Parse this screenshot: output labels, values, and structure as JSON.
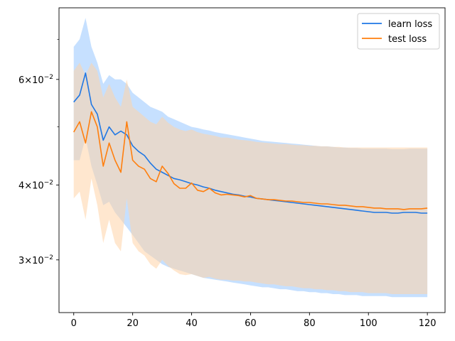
{
  "chart_data": {
    "type": "line",
    "title": "",
    "xlabel": "",
    "ylabel": "",
    "xlim": [
      -5,
      126
    ],
    "ylim": [
      0.0245,
      0.079
    ],
    "yscale": "log",
    "grid": false,
    "legend_position": "top-right",
    "x_ticks": [
      0,
      20,
      40,
      60,
      80,
      100,
      120
    ],
    "y_major_ticks": [
      {
        "value": 0.03,
        "mantissa": "3",
        "base": "10",
        "exp": "−2"
      },
      {
        "value": 0.04,
        "mantissa": "4",
        "base": "10",
        "exp": "−2"
      },
      {
        "value": 0.06,
        "mantissa": "6",
        "base": "10",
        "exp": "−2"
      }
    ],
    "y_minor_ticks": [
      0.05,
      0.07
    ],
    "series": [
      {
        "name": "learn loss",
        "color": "#1f77e4",
        "band_color": "#a8d0ff",
        "x": [
          0,
          2,
          4,
          6,
          8,
          10,
          12,
          14,
          16,
          18,
          20,
          22,
          24,
          26,
          28,
          30,
          32,
          34,
          36,
          38,
          40,
          42,
          44,
          46,
          48,
          50,
          52,
          54,
          56,
          58,
          60,
          62,
          64,
          66,
          68,
          70,
          72,
          74,
          76,
          78,
          80,
          82,
          84,
          86,
          88,
          90,
          92,
          94,
          96,
          98,
          100,
          102,
          104,
          106,
          108,
          110,
          112,
          114,
          116,
          118,
          120
        ],
        "values": [
          0.055,
          0.0565,
          0.0615,
          0.0545,
          0.0525,
          0.0475,
          0.05,
          0.0485,
          0.0492,
          0.0485,
          0.0465,
          0.0455,
          0.0448,
          0.0435,
          0.0425,
          0.042,
          0.0415,
          0.041,
          0.0408,
          0.0405,
          0.0402,
          0.04,
          0.0397,
          0.0395,
          0.0392,
          0.039,
          0.0388,
          0.0386,
          0.0385,
          0.0383,
          0.0382,
          0.038,
          0.0379,
          0.0378,
          0.0377,
          0.0376,
          0.0375,
          0.0374,
          0.0373,
          0.0372,
          0.0371,
          0.037,
          0.0369,
          0.0368,
          0.0367,
          0.0366,
          0.0365,
          0.0364,
          0.0363,
          0.0362,
          0.0361,
          0.036,
          0.036,
          0.036,
          0.0359,
          0.0359,
          0.036,
          0.036,
          0.036,
          0.0359,
          0.0359
        ],
        "upper": [
          0.068,
          0.07,
          0.076,
          0.068,
          0.064,
          0.059,
          0.061,
          0.06,
          0.06,
          0.059,
          0.057,
          0.056,
          0.055,
          0.054,
          0.0535,
          0.053,
          0.052,
          0.0515,
          0.051,
          0.0505,
          0.05,
          0.0498,
          0.0495,
          0.0493,
          0.049,
          0.0488,
          0.0486,
          0.0484,
          0.0482,
          0.048,
          0.0478,
          0.0476,
          0.0474,
          0.0473,
          0.0472,
          0.0471,
          0.047,
          0.0469,
          0.0468,
          0.0467,
          0.0466,
          0.0465,
          0.0464,
          0.0464,
          0.0463,
          0.0462,
          0.0462,
          0.0461,
          0.0461,
          0.046,
          0.046,
          0.046,
          0.046,
          0.046,
          0.0459,
          0.0459,
          0.0459,
          0.046,
          0.046,
          0.046,
          0.046
        ],
        "lower": [
          0.044,
          0.044,
          0.048,
          0.043,
          0.04,
          0.037,
          0.0375,
          0.036,
          0.035,
          0.034,
          0.033,
          0.032,
          0.031,
          0.0305,
          0.03,
          0.0295,
          0.0292,
          0.029,
          0.0288,
          0.0286,
          0.0284,
          0.0282,
          0.028,
          0.0279,
          0.0278,
          0.0277,
          0.0276,
          0.0275,
          0.0274,
          0.0273,
          0.0272,
          0.0271,
          0.027,
          0.027,
          0.0269,
          0.0268,
          0.0268,
          0.0267,
          0.0266,
          0.0266,
          0.0265,
          0.0265,
          0.0264,
          0.0264,
          0.0263,
          0.0263,
          0.0262,
          0.0262,
          0.0262,
          0.0261,
          0.0261,
          0.0261,
          0.0261,
          0.0261,
          0.026,
          0.026,
          0.026,
          0.026,
          0.026,
          0.026,
          0.026
        ]
      },
      {
        "name": "test loss",
        "color": "#ff7f0e",
        "band_color": "#ffd3a8",
        "x": [
          0,
          2,
          4,
          6,
          8,
          10,
          12,
          14,
          16,
          18,
          20,
          22,
          24,
          26,
          28,
          30,
          32,
          34,
          36,
          38,
          40,
          42,
          44,
          46,
          48,
          50,
          52,
          54,
          56,
          58,
          60,
          62,
          64,
          66,
          68,
          70,
          72,
          74,
          76,
          78,
          80,
          82,
          84,
          86,
          88,
          90,
          92,
          94,
          96,
          98,
          100,
          102,
          104,
          106,
          108,
          110,
          112,
          114,
          116,
          118,
          120
        ],
        "values": [
          0.049,
          0.051,
          0.047,
          0.053,
          0.05,
          0.043,
          0.047,
          0.044,
          0.042,
          0.051,
          0.044,
          0.043,
          0.0425,
          0.041,
          0.0405,
          0.043,
          0.0418,
          0.0402,
          0.0395,
          0.0395,
          0.0403,
          0.0392,
          0.039,
          0.0395,
          0.0388,
          0.0385,
          0.0386,
          0.0385,
          0.0384,
          0.0382,
          0.0384,
          0.038,
          0.0379,
          0.0378,
          0.0378,
          0.0377,
          0.0376,
          0.0376,
          0.0375,
          0.0374,
          0.0374,
          0.0373,
          0.0372,
          0.0372,
          0.0371,
          0.037,
          0.037,
          0.0369,
          0.0368,
          0.0368,
          0.0367,
          0.0366,
          0.0366,
          0.0365,
          0.0365,
          0.0365,
          0.0364,
          0.0365,
          0.0365,
          0.0365,
          0.0366
        ],
        "upper": [
          0.062,
          0.064,
          0.061,
          0.064,
          0.062,
          0.056,
          0.059,
          0.056,
          0.054,
          0.06,
          0.054,
          0.053,
          0.052,
          0.051,
          0.0505,
          0.052,
          0.0508,
          0.05,
          0.0495,
          0.0492,
          0.0495,
          0.049,
          0.0487,
          0.0485,
          0.0483,
          0.048,
          0.048,
          0.0478,
          0.0476,
          0.0475,
          0.0474,
          0.0472,
          0.0471,
          0.047,
          0.0469,
          0.0468,
          0.0468,
          0.0467,
          0.0466,
          0.0466,
          0.0465,
          0.0465,
          0.0464,
          0.0464,
          0.0463,
          0.0463,
          0.0462,
          0.0462,
          0.0462,
          0.0462,
          0.0462,
          0.0462,
          0.0462,
          0.0462,
          0.0462,
          0.0462,
          0.0462,
          0.0462,
          0.0462,
          0.0462,
          0.0462
        ],
        "lower": [
          0.038,
          0.039,
          0.035,
          0.041,
          0.037,
          0.032,
          0.035,
          0.032,
          0.031,
          0.038,
          0.032,
          0.031,
          0.0305,
          0.0295,
          0.029,
          0.03,
          0.0293,
          0.0288,
          0.0284,
          0.0283,
          0.0284,
          0.0282,
          0.028,
          0.0281,
          0.0279,
          0.0278,
          0.0278,
          0.0277,
          0.0277,
          0.0276,
          0.0276,
          0.0275,
          0.0274,
          0.0273,
          0.0273,
          0.0272,
          0.0271,
          0.0271,
          0.027,
          0.0269,
          0.0269,
          0.0268,
          0.0268,
          0.0267,
          0.0267,
          0.0266,
          0.0266,
          0.0265,
          0.0265,
          0.0265,
          0.0264,
          0.0264,
          0.0264,
          0.0264,
          0.0263,
          0.0263,
          0.0263,
          0.0263,
          0.0263,
          0.0263,
          0.0263
        ]
      }
    ]
  }
}
